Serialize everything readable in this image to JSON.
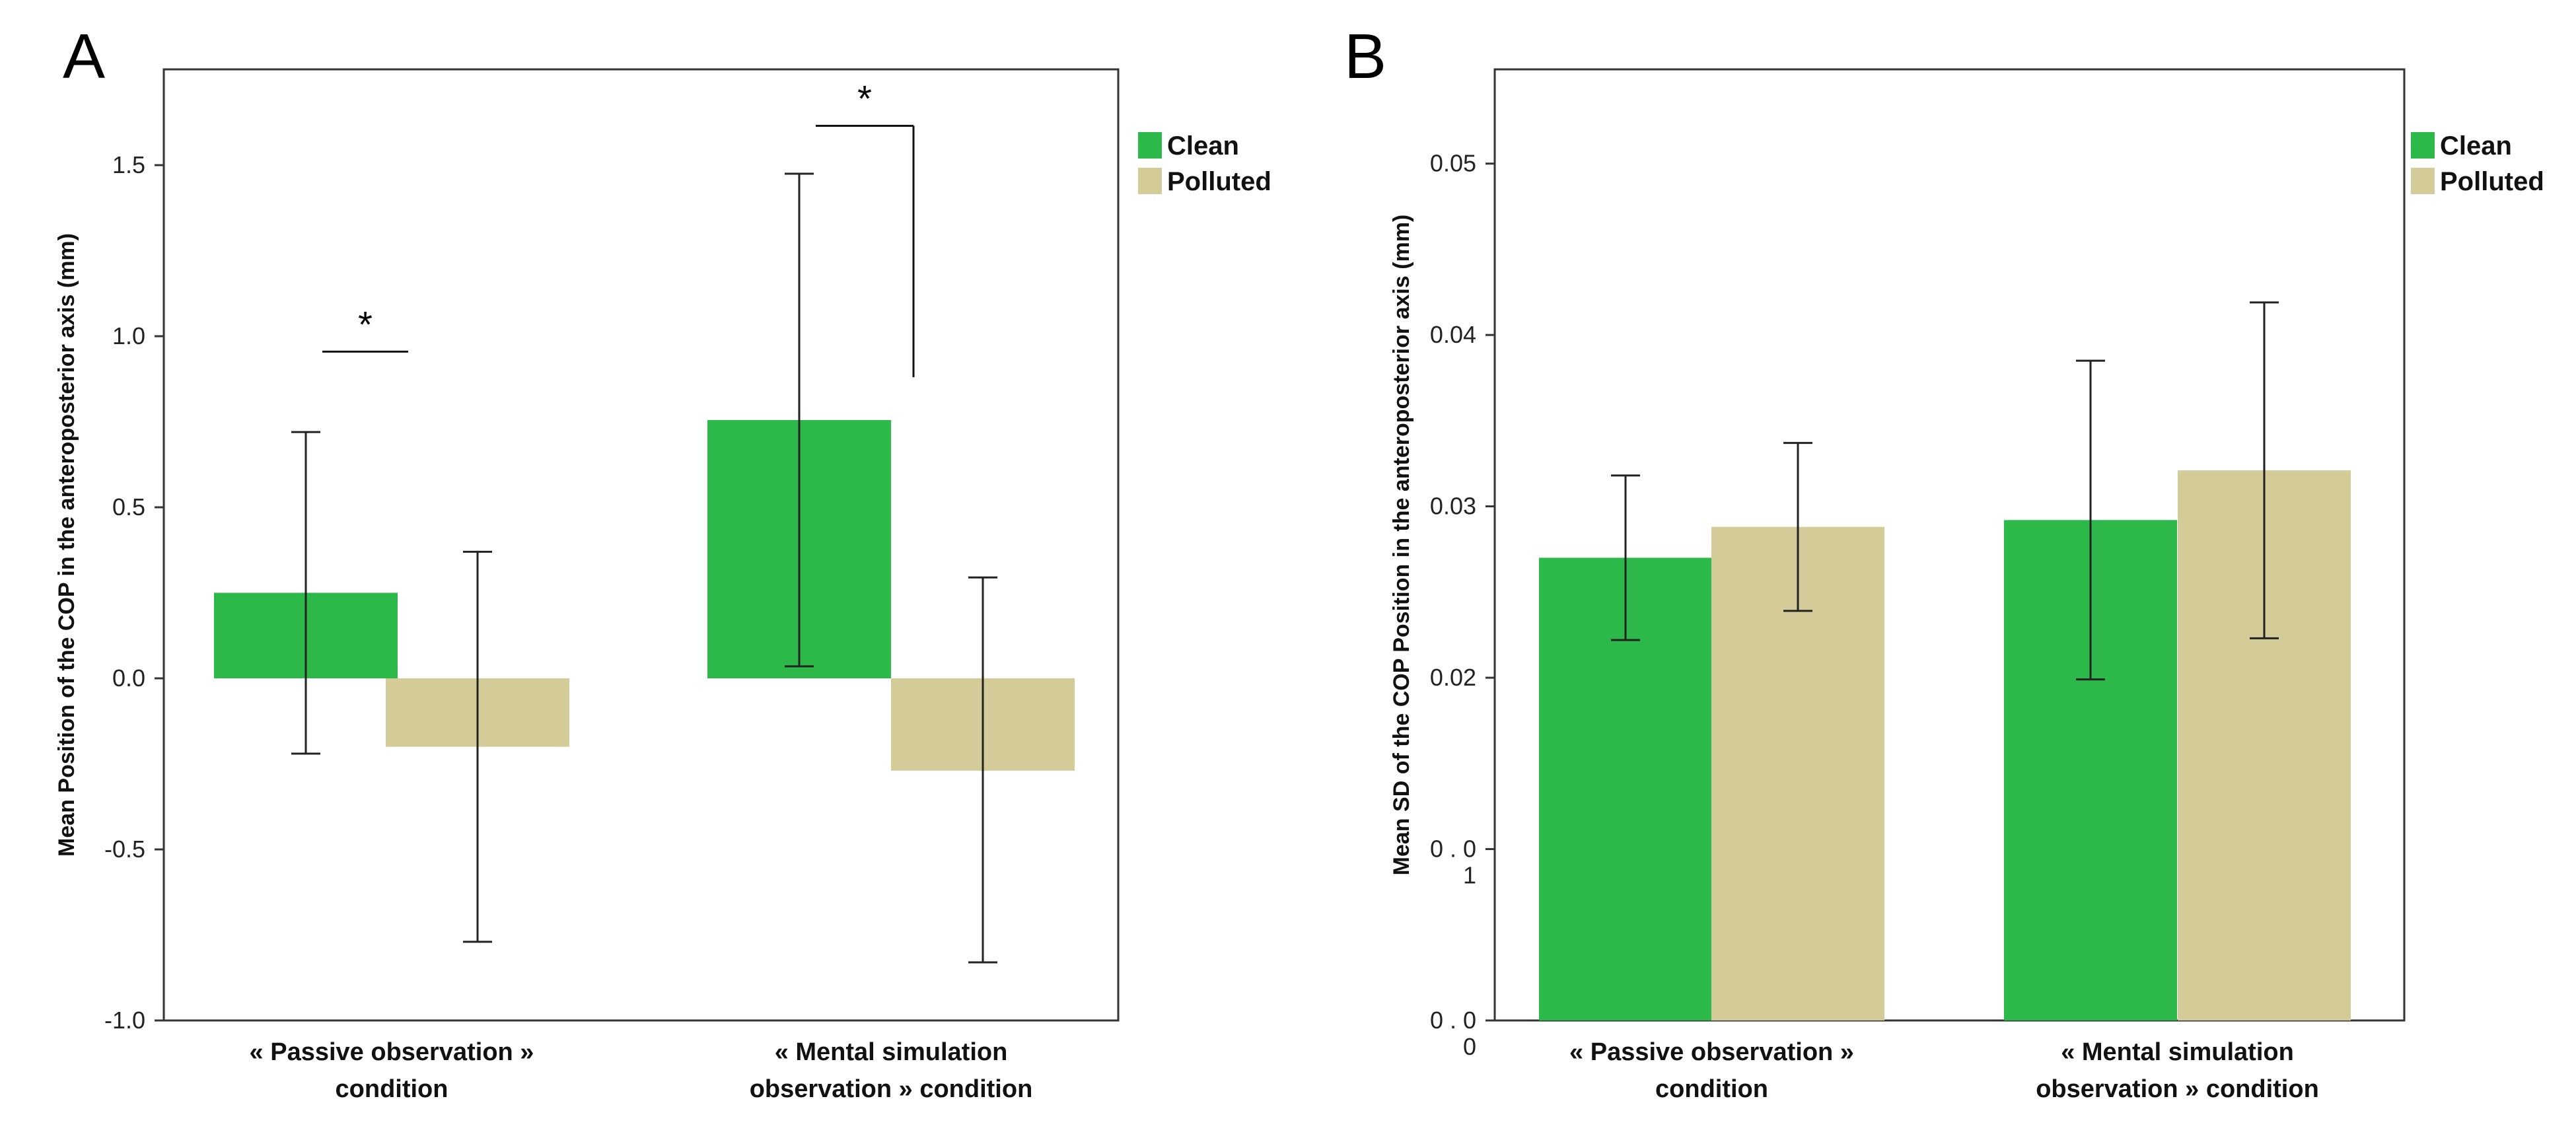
{
  "chart_data": [
    {
      "panel": "A",
      "type": "bar",
      "ylabel": "Mean Position of the COP in the anteroposterior axis (mm)",
      "ylim": [
        -1.0,
        1.78
      ],
      "yticks": [
        -1.0,
        -0.5,
        0.0,
        0.5,
        1.0,
        1.5
      ],
      "ytick_labels": [
        "-1.0",
        "-0.5",
        "0.0",
        "0.5",
        "1.0",
        "1.5"
      ],
      "categories": [
        [
          "« Passive observation »",
          "condition"
        ],
        [
          "« Mental simulation",
          "observation » condition"
        ]
      ],
      "series": [
        {
          "name": "Clean",
          "color": "#2db84a",
          "values": [
            0.25,
            0.755
          ],
          "err_low": [
            -0.22,
            0.035
          ],
          "err_high": [
            0.72,
            1.475
          ]
        },
        {
          "name": "Polluted",
          "color": "#d4cc98",
          "values": [
            -0.2,
            -0.27
          ],
          "err_low": [
            -0.77,
            -0.83
          ],
          "err_high": [
            0.37,
            0.295
          ]
        }
      ],
      "significance": [
        {
          "label": "*",
          "category": 0,
          "y": 0.955
        },
        {
          "label": "*",
          "category": 1,
          "y": 1.615,
          "drop_to": 0.88
        }
      ],
      "legend": "top-right"
    },
    {
      "panel": "B",
      "type": "bar",
      "ylabel": "Mean SD of the COP Position  in the anteroposterior axis (mm)",
      "ylim": [
        0.0,
        0.0555
      ],
      "yticks": [
        0.0,
        0.01,
        0.02,
        0.03,
        0.04,
        0.05
      ],
      "ytick_labels": [
        [
          "0 . 0",
          "0"
        ],
        [
          "0 . 0",
          "1"
        ],
        "0.02",
        "0.03",
        "0.04",
        "0.05"
      ],
      "categories": [
        [
          "« Passive observation »",
          "condition"
        ],
        [
          "« Mental simulation",
          "observation » condition"
        ]
      ],
      "series": [
        {
          "name": "Clean",
          "color": "#2db84a",
          "values": [
            0.027,
            0.0292
          ],
          "err_low": [
            0.0222,
            0.0199
          ],
          "err_high": [
            0.0318,
            0.0385
          ]
        },
        {
          "name": "Polluted",
          "color": "#d4cc98",
          "values": [
            0.0288,
            0.0321
          ],
          "err_low": [
            0.0239,
            0.0223
          ],
          "err_high": [
            0.0337,
            0.0419
          ]
        }
      ],
      "legend": "top-right"
    }
  ]
}
